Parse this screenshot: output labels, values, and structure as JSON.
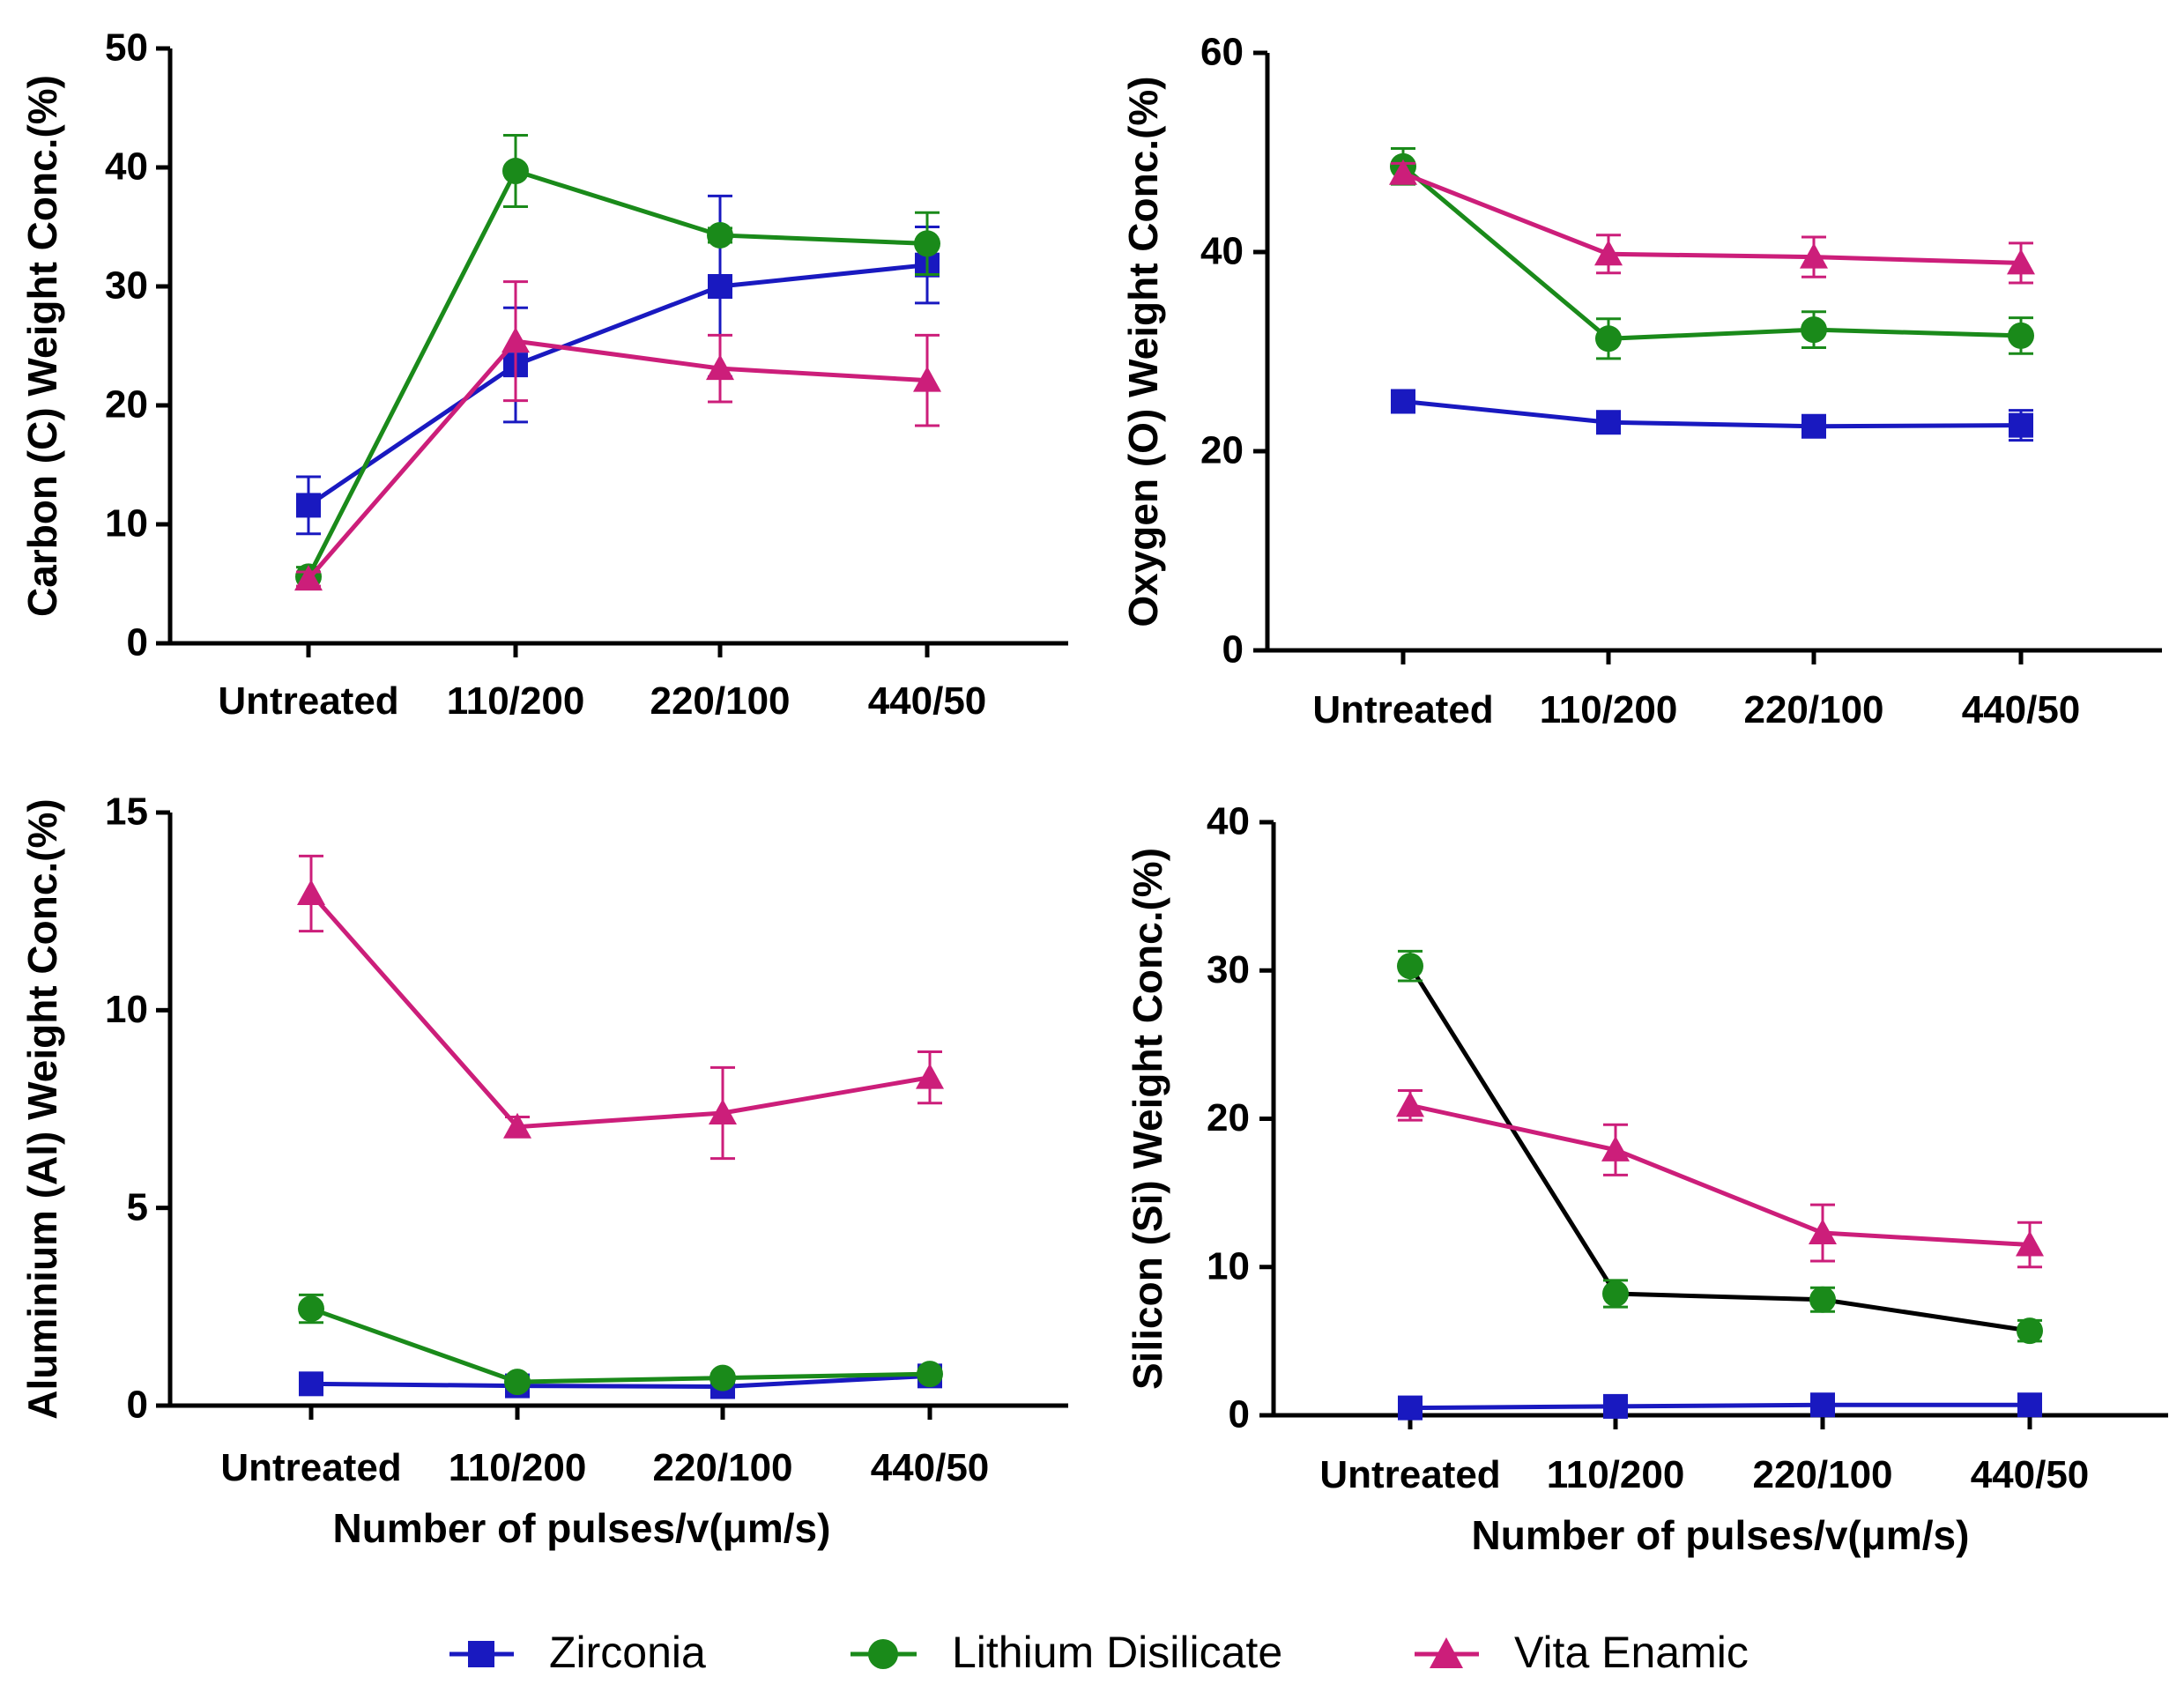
{
  "chart_data": [
    {
      "type": "line",
      "panel": "top-left",
      "categories": [
        "Untreated",
        "110/200",
        "220/100",
        "440/50"
      ],
      "ylabel": "Carbon (C) Weight Conc.(%)",
      "xlabel": "",
      "ylim": [
        0,
        50
      ],
      "yticks": [
        0,
        10,
        20,
        30,
        40,
        50
      ],
      "series": [
        {
          "name": "Zirconia",
          "values": [
            11.6,
            23.4,
            30.0,
            31.8
          ],
          "errors": [
            2.4,
            4.8,
            7.6,
            3.2
          ]
        },
        {
          "name": "Lithium Disilicate",
          "values": [
            5.6,
            39.7,
            34.3,
            33.6
          ],
          "errors": [
            0.8,
            3.0,
            0.6,
            2.6
          ]
        },
        {
          "name": "Vita Enamic",
          "values": [
            5.4,
            25.4,
            23.1,
            22.1
          ],
          "errors": [
            0.6,
            5.0,
            2.8,
            3.8
          ]
        }
      ]
    },
    {
      "type": "line",
      "panel": "top-right",
      "categories": [
        "Untreated",
        "110/200",
        "220/100",
        "440/50"
      ],
      "ylabel": "Oxygen (O) Weight Conc.(%)",
      "xlabel": "",
      "ylim": [
        0,
        60
      ],
      "yticks": [
        0,
        20,
        40,
        60
      ],
      "series": [
        {
          "name": "Zirconia",
          "values": [
            25.0,
            22.9,
            22.5,
            22.6
          ],
          "errors": [
            0.6,
            0.8,
            0.5,
            1.5
          ]
        },
        {
          "name": "Lithium Disilicate",
          "values": [
            48.6,
            31.3,
            32.2,
            31.6
          ],
          "errors": [
            1.8,
            2.0,
            1.8,
            1.8
          ]
        },
        {
          "name": "Vita Enamic",
          "values": [
            47.9,
            39.8,
            39.5,
            38.9
          ],
          "errors": [
            1.0,
            1.9,
            2.0,
            2.0
          ]
        }
      ]
    },
    {
      "type": "line",
      "panel": "bottom-left",
      "categories": [
        "Untreated",
        "110/200",
        "220/100",
        "440/50"
      ],
      "ylabel": "Aluminium (Al) Weight Conc.(%)",
      "xlabel": "Number of pulses/v(μm/s)",
      "ylim": [
        0,
        15
      ],
      "yticks": [
        0,
        5,
        10,
        15
      ],
      "series": [
        {
          "name": "Zirconia",
          "values": [
            0.55,
            0.5,
            0.48,
            0.75
          ],
          "errors": [
            0.1,
            0.15,
            0.2,
            0.1
          ]
        },
        {
          "name": "Lithium Disilicate",
          "values": [
            2.45,
            0.6,
            0.7,
            0.8
          ],
          "errors": [
            0.35,
            0.1,
            0.1,
            0.1
          ]
        },
        {
          "name": "Vita Enamic",
          "values": [
            12.95,
            7.05,
            7.4,
            8.3
          ],
          "errors": [
            0.95,
            0.25,
            1.15,
            0.65
          ]
        }
      ]
    },
    {
      "type": "line",
      "panel": "bottom-right",
      "categories": [
        "Untreated",
        "110/200",
        "220/100",
        "440/50"
      ],
      "ylabel": "Silicon (Si) Weight Conc.(%)",
      "xlabel": "Number of pulses/v(μm/s)",
      "ylim": [
        0,
        40
      ],
      "yticks": [
        0,
        10,
        20,
        30,
        40
      ],
      "series": [
        {
          "name": "Zirconia",
          "values": [
            0.5,
            0.6,
            0.7,
            0.7
          ],
          "errors": [
            0.1,
            0.1,
            0.1,
            0.1
          ]
        },
        {
          "name": "Lithium Disilicate",
          "values": [
            30.3,
            8.2,
            7.8,
            5.7
          ],
          "errors": [
            1.0,
            0.9,
            0.8,
            0.7
          ],
          "line_color": "#000000"
        },
        {
          "name": "Vita Enamic",
          "values": [
            20.9,
            17.9,
            12.3,
            11.5
          ],
          "errors": [
            1.0,
            1.7,
            1.9,
            1.5
          ]
        }
      ]
    }
  ],
  "legend": {
    "position": "bottom-center",
    "items": [
      {
        "name": "Zirconia",
        "marker": "square"
      },
      {
        "name": "Lithium Disilicate",
        "marker": "circle"
      },
      {
        "name": "Vita Enamic",
        "marker": "triangle"
      }
    ]
  },
  "colors": {
    "Zirconia": "#1919c0",
    "Lithium Disilicate": "#1a8a1a",
    "Vita Enamic": "#cc1e7a",
    "axis": "#000000"
  }
}
